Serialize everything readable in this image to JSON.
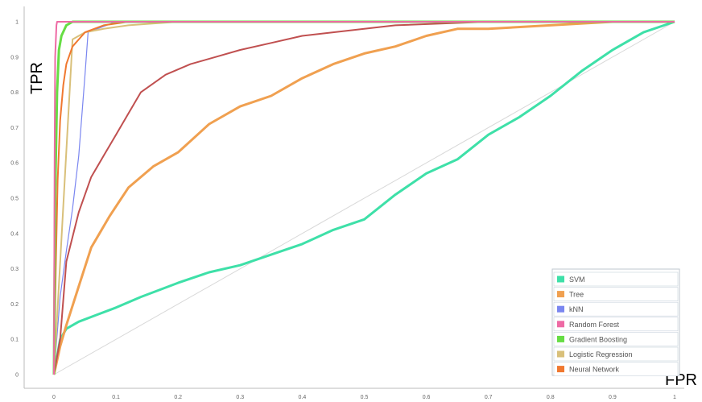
{
  "chart_data": {
    "type": "line",
    "xlabel": "FPR",
    "ylabel": "TPR",
    "xlim": [
      0,
      1
    ],
    "ylim": [
      0,
      1
    ],
    "x_ticks": [
      "0",
      "0.1",
      "0.2",
      "0.3",
      "0.4",
      "0.5",
      "0.6",
      "0.7",
      "0.8",
      "0.9",
      "1"
    ],
    "y_ticks": [
      "0",
      "0.1",
      "0.2",
      "0.3",
      "0.4",
      "0.5",
      "0.6",
      "0.7",
      "0.8",
      "0.9",
      "1"
    ],
    "grid": false,
    "legend_position": "bottom-right",
    "diagonal_reference": true,
    "series": [
      {
        "name": "SVM",
        "color": "#3ee0a8",
        "x": [
          0,
          0.01,
          0.02,
          0.04,
          0.07,
          0.1,
          0.14,
          0.2,
          0.25,
          0.3,
          0.35,
          0.4,
          0.45,
          0.5,
          0.55,
          0.6,
          0.65,
          0.7,
          0.75,
          0.8,
          0.85,
          0.9,
          0.95,
          1.0
        ],
        "y": [
          0,
          0.1,
          0.13,
          0.15,
          0.17,
          0.19,
          0.22,
          0.26,
          0.29,
          0.31,
          0.34,
          0.37,
          0.41,
          0.44,
          0.51,
          0.57,
          0.61,
          0.68,
          0.73,
          0.79,
          0.86,
          0.92,
          0.97,
          1.0
        ]
      },
      {
        "name": "Tree",
        "color": "#f0a050",
        "x": [
          0,
          0.01,
          0.02,
          0.04,
          0.06,
          0.09,
          0.12,
          0.16,
          0.2,
          0.25,
          0.3,
          0.35,
          0.4,
          0.45,
          0.5,
          0.55,
          0.6,
          0.65,
          0.7,
          0.8,
          0.9,
          1.0
        ],
        "y": [
          0,
          0.08,
          0.14,
          0.25,
          0.36,
          0.45,
          0.53,
          0.59,
          0.63,
          0.71,
          0.76,
          0.79,
          0.84,
          0.88,
          0.91,
          0.93,
          0.96,
          0.98,
          0.98,
          0.99,
          1.0,
          1.0
        ]
      },
      {
        "name": "kNN",
        "color": "#7a86f0",
        "x": [
          0,
          0.01,
          0.02,
          0.03,
          0.04,
          0.05,
          0.055,
          0.1,
          1.0
        ],
        "y": [
          0,
          0.22,
          0.35,
          0.47,
          0.62,
          0.85,
          0.97,
          1.0,
          1.0
        ]
      },
      {
        "name": "Random Forest",
        "color": "#ee6aa4",
        "x": [
          0,
          0.001,
          0.002,
          0.004,
          0.005,
          1.0
        ],
        "y": [
          0,
          0.6,
          0.9,
          0.99,
          1.0,
          1.0
        ]
      },
      {
        "name": "Gradient Boosting",
        "color": "#66dd44",
        "x": [
          0,
          0.002,
          0.005,
          0.008,
          0.012,
          0.02,
          0.03,
          1.0
        ],
        "y": [
          0,
          0.5,
          0.8,
          0.92,
          0.96,
          0.99,
          1.0,
          1.0
        ]
      },
      {
        "name": "Logistic Regression",
        "color": "#d9c07a",
        "x": [
          0,
          0.03,
          0.05,
          0.08,
          0.12,
          0.2,
          0.4,
          0.6,
          0.8,
          0.95,
          1.0
        ],
        "y": [
          0,
          0.95,
          0.97,
          0.98,
          0.99,
          1.0,
          1.0,
          1.0,
          1.0,
          1.0,
          1.0
        ]
      },
      {
        "name": "Neural Network",
        "color": "#f07830",
        "x": [
          0,
          0.003,
          0.006,
          0.01,
          0.015,
          0.02,
          0.03,
          0.05,
          0.08,
          0.12,
          0.2,
          1.0
        ],
        "y": [
          0,
          0.3,
          0.55,
          0.72,
          0.82,
          0.88,
          0.93,
          0.97,
          0.99,
          1.0,
          1.0,
          1.0
        ]
      },
      {
        "name": "",
        "color": "#c05050",
        "x": [
          0,
          0.01,
          0.02,
          0.04,
          0.06,
          0.08,
          0.1,
          0.12,
          0.14,
          0.18,
          0.22,
          0.26,
          0.3,
          0.35,
          0.4,
          0.45,
          0.55,
          0.7,
          0.85,
          1.0
        ],
        "y": [
          0,
          0.1,
          0.32,
          0.46,
          0.56,
          0.62,
          0.68,
          0.74,
          0.8,
          0.85,
          0.88,
          0.9,
          0.92,
          0.94,
          0.96,
          0.97,
          0.99,
          1.0,
          1.0,
          1.0
        ]
      }
    ],
    "legend": [
      "SVM",
      "Tree",
      "kNN",
      "Random Forest",
      "Gradient Boosting",
      "Logistic Regression",
      "Neural Network"
    ]
  }
}
